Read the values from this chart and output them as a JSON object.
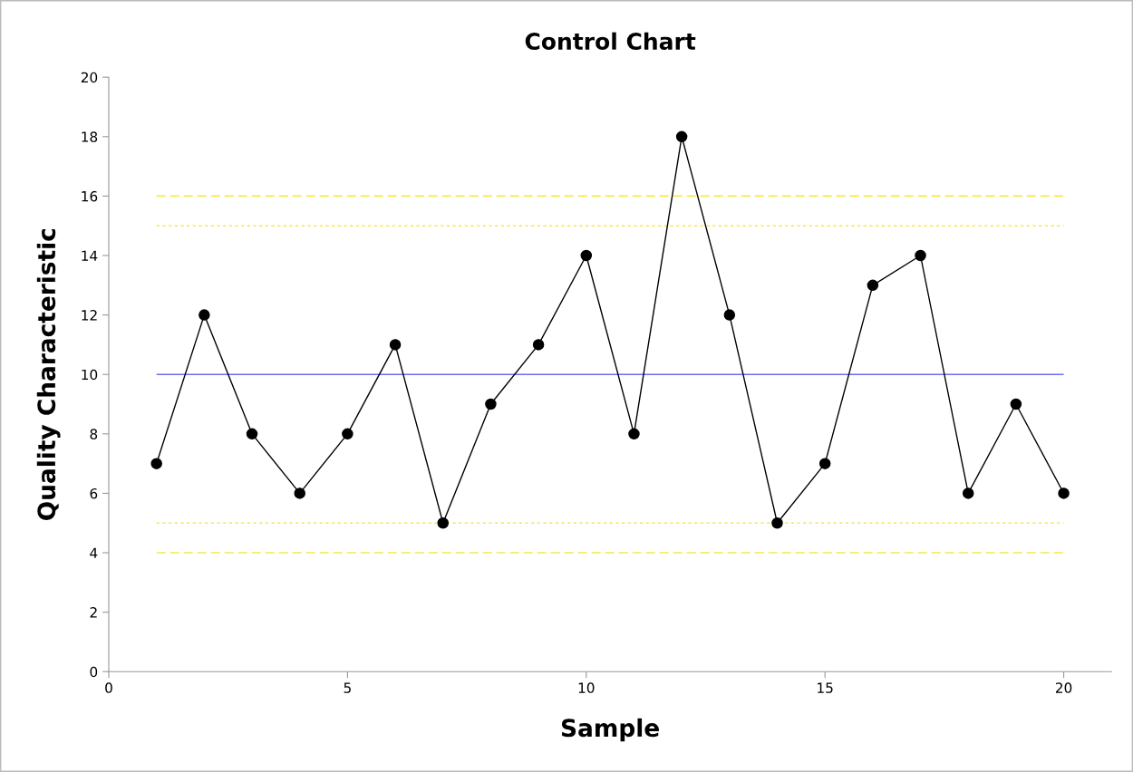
{
  "chart_data": {
    "type": "line",
    "title": "Control Chart",
    "xlabel": "Sample",
    "ylabel": "Quality Characteristic",
    "x": [
      1,
      2,
      3,
      4,
      5,
      6,
      7,
      8,
      9,
      10,
      11,
      12,
      13,
      14,
      15,
      16,
      17,
      18,
      19,
      20
    ],
    "series": [
      {
        "color": "#000000",
        "values": [
          7,
          12,
          8,
          6,
          8,
          11,
          5,
          9,
          11,
          14,
          8,
          18,
          12,
          5,
          7,
          13,
          14,
          6,
          9,
          6
        ]
      }
    ],
    "marker": "circle",
    "line_style": "solid",
    "xlim": [
      0,
      21
    ],
    "xticks": [
      0,
      5,
      10,
      15,
      20
    ],
    "ylim": [
      0,
      20
    ],
    "yticks": [
      0,
      2,
      4,
      6,
      8,
      10,
      12,
      14,
      16,
      18,
      20
    ],
    "grid": false,
    "ref_lines": [
      {
        "axis": "y",
        "value": 16,
        "color": "#f7e84a",
        "line_style": "dashed"
      },
      {
        "axis": "y",
        "value": 15,
        "color": "#f7e84a",
        "line_style": "dotted"
      },
      {
        "axis": "y",
        "value": 10,
        "color": "#6f6ff2",
        "line_style": "solid"
      },
      {
        "axis": "y",
        "value": 5,
        "color": "#f7e84a",
        "line_style": "dotted"
      },
      {
        "axis": "y",
        "value": 4,
        "color": "#f7e84a",
        "line_style": "dashed"
      }
    ]
  }
}
